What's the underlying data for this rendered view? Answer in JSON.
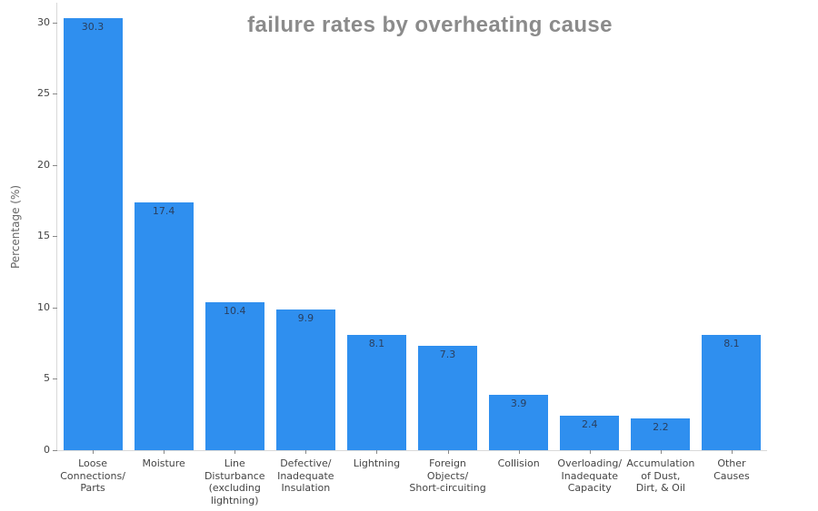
{
  "chart_data": {
    "type": "bar",
    "title": "failure rates by overheating cause",
    "xlabel": "",
    "ylabel": "Percentage (%)",
    "categories": [
      "Loose\nConnections/\nParts",
      "Moisture",
      "Line\nDisturbance\n(excluding\nlightning)",
      "Defective/\nInadequate\nInsulation",
      "Lightning",
      "Foreign\nObjects/\nShort-circuiting",
      "Collision",
      "Overloading/\nInadequate\nCapacity",
      "Accumulation\nof Dust,\nDirt, & Oil",
      "Other\nCauses"
    ],
    "values": [
      30.3,
      17.4,
      10.4,
      9.9,
      8.1,
      7.3,
      3.9,
      2.4,
      2.2,
      8.1
    ],
    "value_labels": [
      "30.3",
      "17.4",
      "10.4",
      "9.9",
      "8.1",
      "7.3",
      "3.9",
      "2.4",
      "2.2",
      "8.1"
    ],
    "yticks": [
      0,
      5,
      10,
      15,
      20,
      25,
      30
    ],
    "ylim": [
      0,
      31.4
    ],
    "grid": false,
    "legend": "none",
    "colors": {
      "bar": "#2f8fef",
      "value_label": "#2a3f5f",
      "tick_label": "#444444",
      "tick_mark": "#888888",
      "axis_line": "#d9d9d9",
      "title": "#8b8b8b",
      "axis_title": "#666666"
    }
  }
}
